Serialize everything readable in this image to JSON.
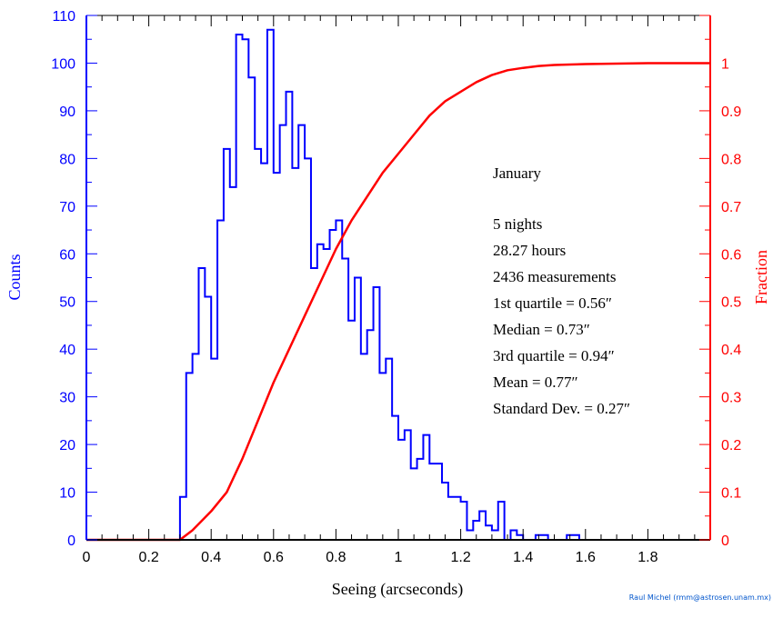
{
  "chart_data": {
    "type": "bar",
    "subtype": "histogram-with-cumulative-line",
    "xlabel": "Seeing (arcseconds)",
    "ylabel_left": "Counts",
    "ylabel_right": "Fraction",
    "xlim": [
      0,
      2.0
    ],
    "ylim_left": [
      0,
      110
    ],
    "ylim_right": [
      0,
      1.1
    ],
    "grid": false,
    "x_ticks": [
      "0",
      "0.2",
      "0.4",
      "0.6",
      "0.8",
      "1",
      "1.2",
      "1.4",
      "1.6",
      "1.8"
    ],
    "y_left_ticks": [
      "0",
      "10",
      "20",
      "30",
      "40",
      "50",
      "60",
      "70",
      "80",
      "90",
      "100",
      "110"
    ],
    "y_right_ticks": [
      "0",
      "0.1",
      "0.2",
      "0.3",
      "0.4",
      "0.5",
      "0.6",
      "0.7",
      "0.8",
      "0.9",
      "1"
    ],
    "histogram": {
      "bin_width": 0.02,
      "bin_start": 0.3,
      "values": [
        9,
        35,
        39,
        57,
        51,
        38,
        67,
        82,
        74,
        106,
        105,
        97,
        82,
        79,
        107,
        77,
        87,
        94,
        78,
        87,
        80,
        57,
        62,
        61,
        65,
        67,
        59,
        46,
        55,
        39,
        44,
        53,
        35,
        38,
        26,
        21,
        23,
        15,
        17,
        22,
        16,
        16,
        12,
        9,
        9,
        8,
        2,
        4,
        6,
        3,
        2,
        8,
        0,
        2,
        1,
        0,
        0,
        1,
        1,
        0,
        0,
        0,
        1,
        1,
        0
      ],
      "color": "#0000ff"
    },
    "cumulative": {
      "x": [
        0.0,
        0.3,
        0.34,
        0.4,
        0.45,
        0.5,
        0.55,
        0.6,
        0.65,
        0.7,
        0.75,
        0.8,
        0.85,
        0.9,
        0.95,
        1.0,
        1.05,
        1.1,
        1.15,
        1.2,
        1.25,
        1.3,
        1.35,
        1.4,
        1.45,
        1.5,
        1.55,
        1.6,
        1.7,
        1.8,
        1.9,
        2.0
      ],
      "y": [
        0.0,
        0.0,
        0.02,
        0.06,
        0.1,
        0.17,
        0.25,
        0.33,
        0.4,
        0.47,
        0.54,
        0.61,
        0.67,
        0.72,
        0.77,
        0.81,
        0.85,
        0.89,
        0.92,
        0.94,
        0.96,
        0.975,
        0.985,
        0.99,
        0.994,
        0.996,
        0.997,
        0.998,
        0.999,
        1.0,
        1.0,
        1.0
      ],
      "color": "#ff0000"
    },
    "annotations": {
      "month": "January",
      "lines": [
        "5 nights",
        "28.27 hours",
        "2436 measurements",
        "1st quartile = 0.56″",
        "Median = 0.73″",
        "3rd quartile = 0.94″",
        "Mean = 0.77″",
        "Standard Dev. = 0.27″"
      ]
    }
  },
  "credit": "Raul Michel (rmm@astrosen.unam.mx)",
  "colors": {
    "left_axis": "#0000ff",
    "right_axis": "#ff0000",
    "text": "#000000",
    "credit": "#0055cc"
  }
}
